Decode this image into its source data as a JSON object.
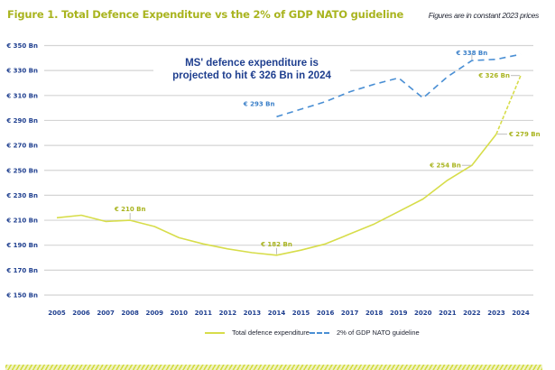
{
  "header": {
    "title": "Figure 1. Total Defence Expenditure vs the 2% of GDP NATO guideline",
    "note": "Figures are in constant 2023 prices"
  },
  "annotation": {
    "line1": "MS' defence expenditure is",
    "line2": "projected to hit € 326 Bn in 2024"
  },
  "legend": {
    "total": "Total defence expenditure",
    "nato": "2% of GDP NATO guideline"
  },
  "colors": {
    "total": "#d7dd4a",
    "nato": "#4a8fd4",
    "title": "#a9b41f",
    "axis_text": "#1f3f8f"
  },
  "chart_data": {
    "type": "line",
    "title": "Figure 1. Total Defence Expenditure vs the 2% of GDP NATO guideline",
    "subtitle": "Figures are in constant 2023 prices",
    "xlabel": "",
    "ylabel": "",
    "x": [
      2005,
      2006,
      2007,
      2008,
      2009,
      2010,
      2011,
      2012,
      2013,
      2014,
      2015,
      2016,
      2017,
      2018,
      2019,
      2020,
      2021,
      2022,
      2023,
      2024
    ],
    "ylim": [
      150,
      350
    ],
    "yticks": [
      150,
      170,
      190,
      210,
      230,
      250,
      270,
      290,
      310,
      330,
      350
    ],
    "ytick_labels": [
      "€ 150 Bn",
      "€ 170 Bn",
      "€ 190 Bn",
      "€ 210 Bn",
      "€ 230 Bn",
      "€ 250 Bn",
      "€ 270 Bn",
      "€ 290 Bn",
      "€ 310 Bn",
      "€ 330 Bn",
      "€ 350 Bn"
    ],
    "grid": true,
    "legend_position": "bottom",
    "series": [
      {
        "name": "Total defence expenditure",
        "style": "solid",
        "projected_from": 2023,
        "values": [
          212,
          214,
          209,
          210,
          205,
          196,
          191,
          187,
          184,
          182,
          186,
          191,
          199,
          207,
          217,
          227,
          242,
          254,
          279,
          326
        ]
      },
      {
        "name": "2% of GDP NATO guideline",
        "style": "dashed",
        "values": [
          null,
          null,
          null,
          null,
          null,
          null,
          null,
          null,
          null,
          293,
          299,
          305,
          313,
          319,
          324,
          308,
          325,
          338,
          339,
          343
        ]
      }
    ],
    "data_labels": [
      {
        "series": 0,
        "year": 2008,
        "text": "€ 210 Bn",
        "pos": "above"
      },
      {
        "series": 0,
        "year": 2014,
        "text": "€ 182 Bn",
        "pos": "above"
      },
      {
        "series": 0,
        "year": 2022,
        "text": "€ 254 Bn",
        "pos": "left"
      },
      {
        "series": 0,
        "year": 2023,
        "text": "€ 279 Bn",
        "pos": "right"
      },
      {
        "series": 0,
        "year": 2024,
        "text": "€ 326 Bn",
        "pos": "left"
      },
      {
        "series": 1,
        "year": 2014,
        "text": "€ 293 Bn",
        "pos": "left-above"
      },
      {
        "series": 1,
        "year": 2022,
        "text": "€ 338 Bn",
        "pos": "above"
      }
    ]
  }
}
